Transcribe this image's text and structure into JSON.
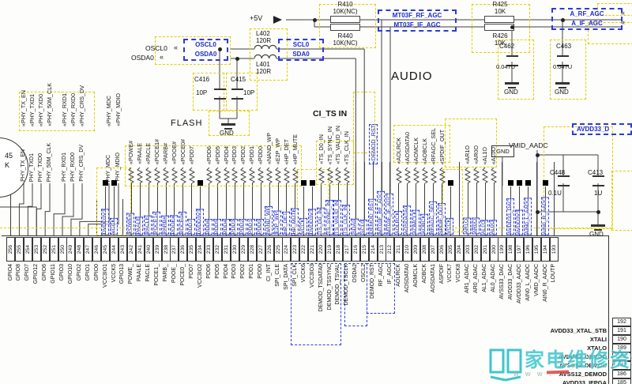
{
  "texts": {
    "p5v": "+5V",
    "audio": "AUDIO",
    "flash": "FLASH",
    "ci_ts": "CI_TS IN",
    "vmid": "VMID_AADC",
    "avdd33d": "AVDD33_D",
    "gnd": "GND",
    "gnd_net": "GND",
    "circle1": "45",
    "circle2": "K"
  },
  "parts": {
    "r410": {
      "ref": "R410",
      "val": "10K(NC)"
    },
    "r440": {
      "ref": "R440",
      "val": "10K(NC)"
    },
    "r425": {
      "ref": "R425",
      "val": "10K"
    },
    "r426": {
      "ref": "R426",
      "val": "10K"
    },
    "l402": {
      "ref": "L402",
      "val": "120R"
    },
    "l401": {
      "ref": "L401",
      "val": "120R"
    },
    "c416": {
      "ref": "C416",
      "val": "10P"
    },
    "c415": {
      "ref": "C415",
      "val": "10P"
    },
    "c462": {
      "ref": "C462",
      "val": "0.047U"
    },
    "c463": {
      "ref": "C463",
      "val": "0.047U"
    },
    "c448": {
      "ref": "C448",
      "val": "0.1U"
    },
    "c413": {
      "ref": "C413",
      "val": "1U"
    }
  },
  "mt": {
    "rf": "MT03F_RF_AGC",
    "ifx": "MT03F_IF_AGC"
  },
  "aagc": {
    "rf": "A_RF_AGC",
    "ifx": "A_IF_AGC"
  },
  "osc": {
    "arrow1": "OSCL0",
    "arrow2": "OSDA0",
    "box1": "OSCL0",
    "box2": "OSDA0"
  },
  "i2c": {
    "scl": "SCL0",
    "sda": "SDA0"
  },
  "phy": {
    "names": [
      "PHY_TX_EN",
      "PHY_TXD1",
      "PHY_TXD0",
      "PHY_50M_CLK",
      "PHY_RXD1",
      "PHY_RXD0",
      "PHY_CRS_DV",
      "PHY_MDC",
      "PHY_MDIO"
    ]
  },
  "pins_bottom": [
    {
      "n": "256",
      "name": "GPIO4"
    },
    {
      "n": "255",
      "name": "GPIO8"
    },
    {
      "n": "254",
      "name": "GPIO7"
    },
    {
      "n": "253",
      "name": "GPIO12"
    },
    {
      "n": "252",
      "name": "GPIO6"
    },
    {
      "n": "251",
      "name": "GPIO11"
    },
    {
      "n": "250",
      "name": "GPIO3"
    },
    {
      "n": "249",
      "name": "GPIO10"
    },
    {
      "n": "248",
      "name": "GPIO2"
    },
    {
      "n": "247",
      "name": "GPIO1"
    },
    {
      "n": "246",
      "name": "GPIO0"
    },
    {
      "n": "245",
      "name": "VCC3IO1",
      "net": "DVDD3V3",
      "sq": true
    },
    {
      "n": "244",
      "name": "VCCK5",
      "net": "VCCK",
      "sq": true
    },
    {
      "n": "243",
      "name": "GPIO13"
    },
    {
      "n": "242",
      "name": "POWE_",
      "net": "POWE#",
      "res": true
    },
    {
      "n": "241",
      "name": "PAALE",
      "net": "PAALE",
      "res": true
    },
    {
      "n": "240",
      "name": "PACLE",
      "net": "PACLE",
      "res": true
    },
    {
      "n": "239",
      "name": "POCE1_",
      "net": "POCE1#",
      "res": true
    },
    {
      "n": "238",
      "name": "PARB_",
      "net": "PARB#",
      "res": true
    },
    {
      "n": "237",
      "name": "POOE_",
      "net": "POOE#",
      "res": true
    },
    {
      "n": "236",
      "name": "POCE0_",
      "net": "POCE0#",
      "res": true
    },
    {
      "n": "235",
      "name": "PDD7",
      "net": "PDD7",
      "res": true
    },
    {
      "n": "234",
      "name": "VCC3IO2",
      "net": "DVDD3V3",
      "sq": true
    },
    {
      "n": "233",
      "name": "PDD6",
      "net": "PDD6",
      "res": true
    },
    {
      "n": "232",
      "name": "PDD5",
      "net": "PDD5",
      "res": true
    },
    {
      "n": "231",
      "name": "PDD4",
      "net": "PDD4",
      "res": true
    },
    {
      "n": "230",
      "name": "PDD3",
      "net": "PDD3",
      "res": true
    },
    {
      "n": "229",
      "name": "PDD2",
      "net": "PDD2",
      "res": true
    },
    {
      "n": "228",
      "name": "PDD1",
      "net": "PDD1",
      "res": true
    },
    {
      "n": "227",
      "name": "PDD0",
      "net": "PDD0",
      "res": true
    },
    {
      "n": "226",
      "name": "CI_INT",
      "net": "NAND_WP",
      "res": true
    },
    {
      "n": "225",
      "name": "SPI_CLE",
      "net": "E2P_WP",
      "res": true
    },
    {
      "n": "224",
      "name": "SPI_DATA",
      "net": "HP_DET",
      "res": true
    },
    {
      "n": "223",
      "name": "SPI_CLK",
      "net": "HP_MUTE",
      "res": true
    },
    {
      "n": "222",
      "name": "VCCK6",
      "net": "VCCK",
      "sq": true
    },
    {
      "n": "221",
      "name": "VCC3IO3",
      "net": "DVDD3V3",
      "sq": true
    },
    {
      "n": "220",
      "name": "DEMOD_TSDATA0",
      "net": "TS_D0_IN",
      "res": true
    },
    {
      "n": "219",
      "name": "DEMOD_TSSYNC",
      "net": "TS_SYNC_IN",
      "res": true
    },
    {
      "n": "218",
      "name": "DEMOD_TSVAL",
      "net": "TS_VALID_IN",
      "res": true
    },
    {
      "n": "217",
      "name": "DEMOD_TSCLK",
      "net": "TS_CLK_IN",
      "res": true
    },
    {
      "n": "216",
      "name": "OSDA2",
      "net": "SDA0"
    },
    {
      "n": "215",
      "name": "OSCL2",
      "net": "SCL0"
    },
    {
      "n": "214",
      "name": "DEMOD_RST",
      "net": "DEMOD_RST",
      "arrow": "DEMOD_RST",
      "ab": true
    },
    {
      "n": "213",
      "name": "RF_AGC",
      "net": "MT03F_RF_AGC"
    },
    {
      "n": "212",
      "name": "IF_AGC",
      "net": "MT03F_IF_AGC"
    },
    {
      "n": "211",
      "name": "AOLRCK",
      "net": "AOLRCK",
      "res": true
    },
    {
      "n": "210",
      "name": "AOSDATA0",
      "net": "AOSDATA0",
      "res": true
    },
    {
      "n": "209",
      "name": "AOMCLK",
      "net": "AOMCLK",
      "res": true
    },
    {
      "n": "208",
      "name": "AOBCK",
      "net": "AOBCK",
      "res": true,
      "arrow": "AOBCLK"
    },
    {
      "n": "207",
      "name": "AOSDATA1",
      "net": "RFAGC_SEL",
      "res": true
    },
    {
      "n": "206",
      "name": "ASPDIF",
      "net": "SPDIF_OUT",
      "res": true
    },
    {
      "n": "205",
      "name": "VCCK7",
      "net": "VCCK",
      "sq": true
    },
    {
      "n": "204",
      "name": "VCCK8"
    },
    {
      "n": "203",
      "name": "AR1_ADAC",
      "net": "AR1O",
      "res": true
    },
    {
      "n": "202",
      "name": "AR0_ADAC",
      "net": "AR0O",
      "res": true
    },
    {
      "n": "201",
      "name": "AL1_ADAC",
      "net": "AL1O",
      "res": true
    },
    {
      "n": "200",
      "name": "AL0_ADAC",
      "net": "AL0O",
      "res": true
    },
    {
      "n": "199",
      "name": "AVSS33_DAC"
    },
    {
      "n": "198",
      "name": "AVDD33_DAC",
      "net": "AVDD33_DAC",
      "sq": true
    },
    {
      "n": "197",
      "name": "AVDD33_AADC",
      "net": "AVDD3V3",
      "sq": true
    },
    {
      "n": "196",
      "name": "AIN0_L_AADC",
      "net": "AIN0_L_AADC",
      "sq": true
    },
    {
      "n": "195",
      "name": "VMID_AADC"
    },
    {
      "n": "194",
      "name": "AIN0_R_AADC",
      "net": "AIN0_R_AADC",
      "sq": true
    },
    {
      "n": "193",
      "name": "LOUTP"
    }
  ],
  "pins_right": [
    {
      "n": "192",
      "name": ""
    },
    {
      "n": "191",
      "name": "AVDD33_XTAL_STB"
    },
    {
      "n": "190",
      "name": "XTALI"
    },
    {
      "n": "189",
      "name": "XTALO"
    },
    {
      "n": "188",
      "name": "AVDD33_DEMOD"
    },
    {
      "n": "187",
      "name": "AVSS33_DEMOD"
    },
    {
      "n": "186",
      "name": "AVSS12_DEMOD"
    },
    {
      "n": "185",
      "name": "AVDD33_IFPGA"
    }
  ],
  "watermark": {
    "cn": "家电维修资料网",
    "www": "w w w ."
  }
}
